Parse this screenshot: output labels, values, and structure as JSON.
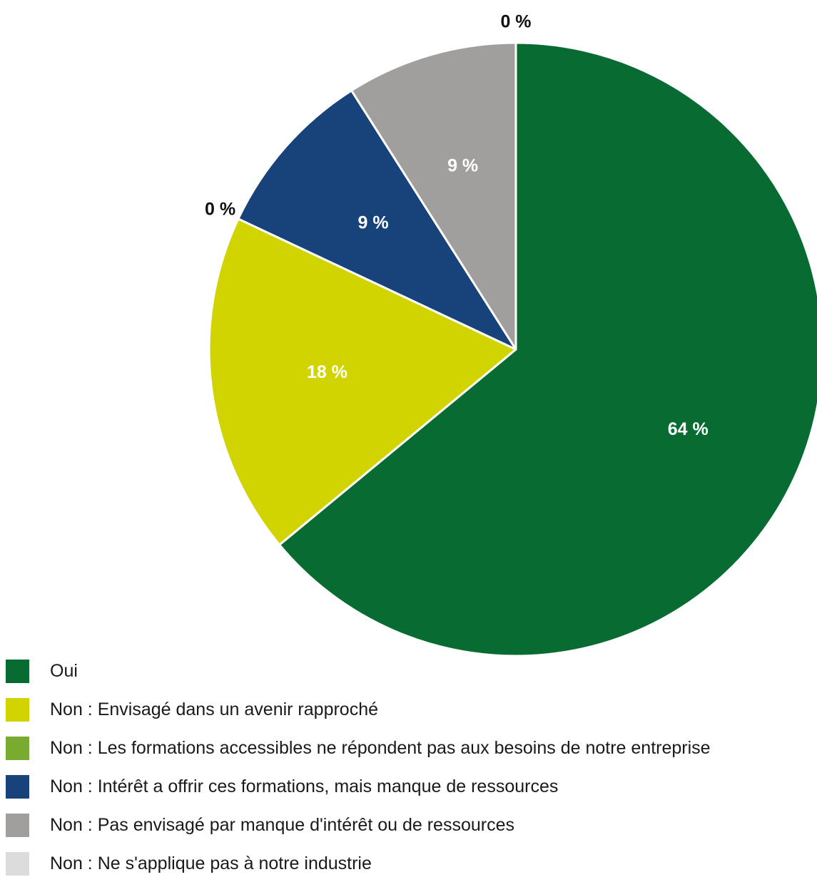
{
  "chart_data": {
    "type": "pie",
    "title": "",
    "slices": [
      {
        "label": "Oui",
        "value": 64,
        "color": "#086c32",
        "label_text": "64 %",
        "label_color": "#ffffff"
      },
      {
        "label": "Non : Envisagé dans un avenir rapproché",
        "value": 18,
        "color": "#d1d400",
        "label_text": "18 %",
        "label_color": "#ffffff"
      },
      {
        "label": "Non : Les formations accessibles ne répondent pas aux besoins de notre entreprise",
        "value": 0,
        "color": "#78ab30",
        "label_text": "0 %",
        "label_color": "#111111"
      },
      {
        "label": "Non : Intérêt a offrir ces formations, mais manque de ressources",
        "value": 9,
        "color": "#17437a",
        "label_text": "9 %",
        "label_color": "#ffffff"
      },
      {
        "label": "Non : Pas envisagé par manque d'intérêt ou de ressources",
        "value": 9,
        "color": "#a09f9d",
        "label_text": "9 %",
        "label_color": "#ffffff"
      },
      {
        "label": "Non : Ne s'applique pas à notre industrie",
        "value": 0,
        "color": "#dcdcdc",
        "label_text": "0 %",
        "label_color": "#111111"
      }
    ],
    "legend_position": "bottom-left",
    "start": "top",
    "direction": "clockwise"
  }
}
